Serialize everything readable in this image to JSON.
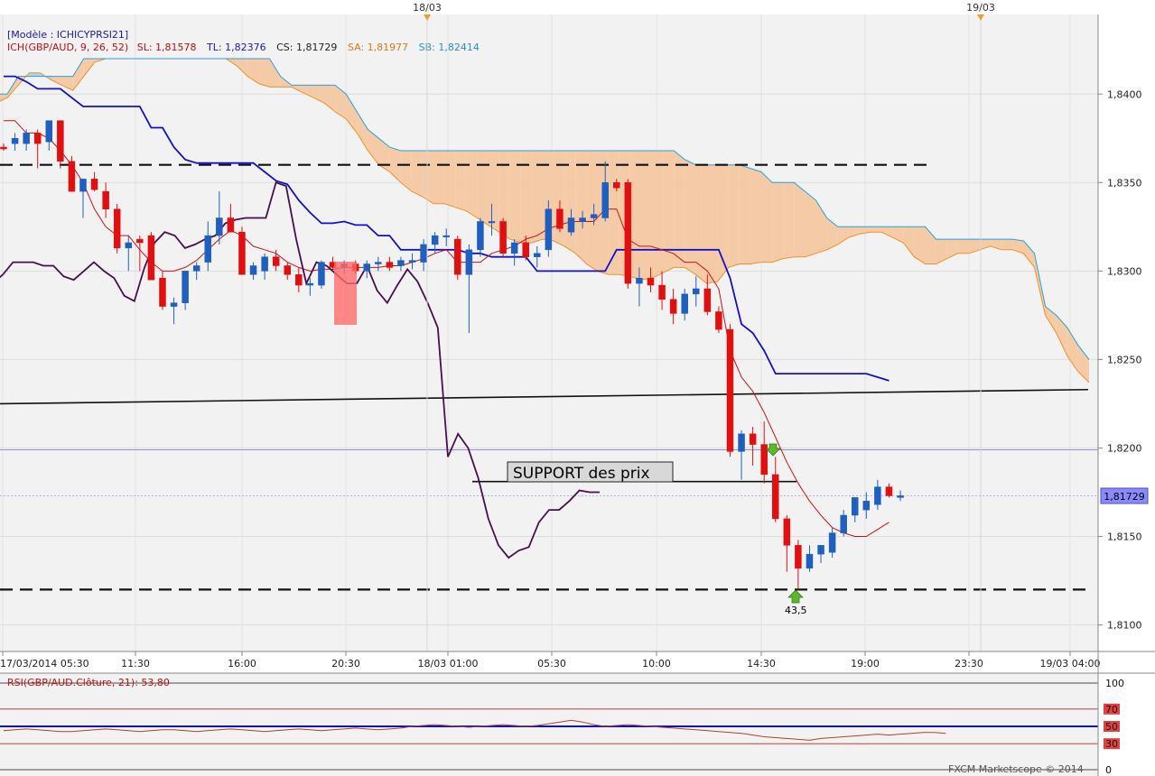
{
  "header": {
    "model_label": "[Modèle : ICHICYPRSI21]",
    "ich_label": "ICH(GBP/AUD, 9, 26, 52)",
    "sl": "SL: 1,81578",
    "tl": "TL: 1,82376",
    "cs": "CS: 1,81729",
    "sa": "SA: 1,81977",
    "sb": "SB: 1,82414"
  },
  "top_markers": [
    "18/03",
    "19/03"
  ],
  "annotations": {
    "support_label": "SUPPORT des prix",
    "rsi_value_label": "43,5"
  },
  "price_tag": "1,81729",
  "rsi_panel": {
    "title": "RSI(GBP/AUD.Clôture, 21): 53,80",
    "levels": [
      "100",
      "70",
      "50",
      "30",
      "0"
    ]
  },
  "footer": "FXCM Marketscope © 2014",
  "colors": {
    "bull": "#1f5fbf",
    "bear": "#e01010",
    "kijun": "#1212c8",
    "tenkan": "#d01010",
    "chikou": "#4a0e4e",
    "senkou_a": "#f0902a",
    "senkou_b": "#2aa0d8",
    "cloud_bear": "#f5cba7",
    "cloud_bull": "#a8d4ee"
  },
  "chart_data": {
    "type": "candlestick",
    "symbol": "GBP/AUD",
    "ylim": [
      1.8085,
      1.8445
    ],
    "y_ticks": [
      "1,8400",
      "1,8350",
      "1,8300",
      "1,8250",
      "1,8200",
      "1,8150",
      "1,8100"
    ],
    "x_ticks": [
      "17/03/2014 05:30",
      "11:30",
      "16:00",
      "20:30",
      "18/03 01:00",
      "05:30",
      "10:00",
      "14:30",
      "19:00",
      "23:30",
      "19/03 04:00"
    ],
    "candles": [
      [
        1.837,
        1.8372,
        1.8368,
        1.8369
      ],
      [
        1.8372,
        1.8378,
        1.8368,
        1.8375
      ],
      [
        1.8372,
        1.838,
        1.8368,
        1.8378
      ],
      [
        1.8378,
        1.838,
        1.8358,
        1.8372
      ],
      [
        1.8373,
        1.8385,
        1.8368,
        1.8385
      ],
      [
        1.8385,
        1.8385,
        1.8358,
        1.8362
      ],
      [
        1.8362,
        1.8365,
        1.8345,
        1.8345
      ],
      [
        1.8345,
        1.8352,
        1.833,
        1.8352
      ],
      [
        1.8352,
        1.8356,
        1.8345,
        1.8346
      ],
      [
        1.8345,
        1.835,
        1.833,
        1.8335
      ],
      [
        1.8335,
        1.8338,
        1.831,
        1.8313
      ],
      [
        1.8313,
        1.832,
        1.83,
        1.8316
      ],
      [
        1.8318,
        1.832,
        1.83,
        1.8316
      ],
      [
        1.832,
        1.8322,
        1.8295,
        1.8295
      ],
      [
        1.8296,
        1.83,
        1.8278,
        1.828
      ],
      [
        1.828,
        1.8285,
        1.827,
        1.8282
      ],
      [
        1.8282,
        1.83,
        1.8278,
        1.83
      ],
      [
        1.83,
        1.8305,
        1.8295,
        1.8303
      ],
      [
        1.8305,
        1.8328,
        1.83,
        1.832
      ],
      [
        1.832,
        1.8345,
        1.8315,
        1.833
      ],
      [
        1.833,
        1.8338,
        1.8322,
        1.8322
      ],
      [
        1.8322,
        1.8325,
        1.8298,
        1.8298
      ],
      [
        1.8298,
        1.8305,
        1.8295,
        1.8303
      ],
      [
        1.83,
        1.831,
        1.8295,
        1.8308
      ],
      [
        1.8308,
        1.8312,
        1.83,
        1.8303
      ],
      [
        1.8303,
        1.8305,
        1.8295,
        1.8298
      ],
      [
        1.8298,
        1.8302,
        1.8288,
        1.8292
      ],
      [
        1.8292,
        1.8296,
        1.8286,
        1.8293
      ],
      [
        1.8292,
        1.8306,
        1.829,
        1.8305
      ],
      [
        1.8305,
        1.8308,
        1.83,
        1.8302
      ],
      [
        1.8302,
        1.8306,
        1.8298,
        1.8304
      ],
      [
        1.8304,
        1.8306,
        1.8298,
        1.83
      ],
      [
        1.83,
        1.8306,
        1.8296,
        1.8304
      ],
      [
        1.8304,
        1.8308,
        1.83,
        1.8305
      ],
      [
        1.8305,
        1.8308,
        1.83,
        1.8302
      ],
      [
        1.8303,
        1.8308,
        1.83,
        1.8306
      ],
      [
        1.8305,
        1.831,
        1.8301,
        1.8306
      ],
      [
        1.8305,
        1.8318,
        1.83,
        1.8315
      ],
      [
        1.8315,
        1.8322,
        1.831,
        1.832
      ],
      [
        1.832,
        1.8324,
        1.8314,
        1.832
      ],
      [
        1.8318,
        1.832,
        1.8295,
        1.8298
      ],
      [
        1.8298,
        1.8315,
        1.8265,
        1.8312
      ],
      [
        1.8312,
        1.833,
        1.8308,
        1.8328
      ],
      [
        1.8328,
        1.8338,
        1.832,
        1.8328
      ],
      [
        1.8328,
        1.833,
        1.8308,
        1.831
      ],
      [
        1.831,
        1.8318,
        1.8303,
        1.8316
      ],
      [
        1.8316,
        1.832,
        1.8306,
        1.8308
      ],
      [
        1.8308,
        1.8314,
        1.8302,
        1.831
      ],
      [
        1.8312,
        1.834,
        1.8308,
        1.8335
      ],
      [
        1.8335,
        1.834,
        1.8322,
        1.8324
      ],
      [
        1.8322,
        1.8335,
        1.832,
        1.833
      ],
      [
        1.8328,
        1.8334,
        1.8324,
        1.833
      ],
      [
        1.833,
        1.8338,
        1.8326,
        1.8332
      ],
      [
        1.833,
        1.8362,
        1.8328,
        1.835
      ],
      [
        1.835,
        1.8352,
        1.8345,
        1.8347
      ],
      [
        1.835,
        1.8352,
        1.829,
        1.8293
      ],
      [
        1.8293,
        1.8302,
        1.828,
        1.8296
      ],
      [
        1.8296,
        1.8302,
        1.8288,
        1.8292
      ],
      [
        1.8292,
        1.83,
        1.8278,
        1.8284
      ],
      [
        1.8284,
        1.829,
        1.827,
        1.8276
      ],
      [
        1.8276,
        1.829,
        1.8272,
        1.8287
      ],
      [
        1.8287,
        1.8297,
        1.828,
        1.829
      ],
      [
        1.829,
        1.8298,
        1.8275,
        1.8277
      ],
      [
        1.8277,
        1.828,
        1.8265,
        1.8267
      ],
      [
        1.8267,
        1.827,
        1.8195,
        1.8198
      ],
      [
        1.8198,
        1.821,
        1.8182,
        1.8208
      ],
      [
        1.8208,
        1.8212,
        1.819,
        1.8202
      ],
      [
        1.8202,
        1.8215,
        1.818,
        1.8185
      ],
      [
        1.8185,
        1.8195,
        1.8158,
        1.816
      ],
      [
        1.816,
        1.8162,
        1.813,
        1.8145
      ],
      [
        1.8145,
        1.8148,
        1.812,
        1.8132
      ],
      [
        1.8132,
        1.8145,
        1.813,
        1.814
      ],
      [
        1.814,
        1.8145,
        1.8135,
        1.8145
      ],
      [
        1.8141,
        1.8155,
        1.8138,
        1.8152
      ],
      [
        1.8152,
        1.8165,
        1.815,
        1.8162
      ],
      [
        1.8162,
        1.8172,
        1.8158,
        1.8172
      ],
      [
        1.8165,
        1.8175,
        1.816,
        1.817
      ],
      [
        1.8168,
        1.8182,
        1.8165,
        1.8178
      ],
      [
        1.8178,
        1.818,
        1.8172,
        1.8173
      ],
      [
        1.8172,
        1.8176,
        1.817,
        1.8173
      ]
    ],
    "kijun": [
      1.841,
      1.841,
      1.8407,
      1.8403,
      1.8403,
      1.8403,
      1.8398,
      1.8393,
      1.8393,
      1.8393,
      1.8393,
      1.8393,
      1.8393,
      1.8381,
      1.8381,
      1.837,
      1.8363,
      1.8361,
      1.8361,
      1.8361,
      1.8361,
      1.8361,
      1.8361,
      1.8356,
      1.8351,
      1.8349,
      1.834,
      1.8333,
      1.8327,
      1.8327,
      1.8328,
      1.8326,
      1.8326,
      1.832,
      1.832,
      1.8312,
      1.8312,
      1.8312,
      1.8312,
      1.8312,
      1.8312,
      1.831,
      1.831,
      1.8308,
      1.8308,
      1.8308,
      1.8308,
      1.83,
      1.83,
      1.83,
      1.83,
      1.83,
      1.83,
      1.83,
      1.8312,
      1.8312,
      1.8312,
      1.8312,
      1.8312,
      1.8312,
      1.8312,
      1.8312,
      1.8312,
      1.8312,
      1.8296,
      1.827,
      1.8265,
      1.8255,
      1.8242,
      1.8242,
      1.8242,
      1.8242,
      1.8242,
      1.8242,
      1.8242,
      1.8242,
      1.8242,
      1.824,
      1.8238
    ],
    "tenkan": [
      1.8385,
      1.8385,
      1.8378,
      1.8378,
      1.8375,
      1.8368,
      1.836,
      1.835,
      1.8335,
      1.8325,
      1.832,
      1.832,
      1.8312,
      1.8305,
      1.83,
      1.83,
      1.8302,
      1.8306,
      1.8312,
      1.8318,
      1.8323,
      1.832,
      1.8314,
      1.8312,
      1.831,
      1.8305,
      1.8302,
      1.83,
      1.8301,
      1.8301,
      1.8302,
      1.8302,
      1.8302,
      1.8302,
      1.8303,
      1.8303,
      1.8305,
      1.8307,
      1.831,
      1.8312,
      1.8305,
      1.8305,
      1.8305,
      1.831,
      1.8312,
      1.8314,
      1.8318,
      1.832,
      1.8324,
      1.8326,
      1.8328,
      1.8328,
      1.8328,
      1.8335,
      1.8335,
      1.8318,
      1.8314,
      1.8314,
      1.8312,
      1.831,
      1.8305,
      1.8305,
      1.83,
      1.829,
      1.8255,
      1.824,
      1.8232,
      1.822,
      1.8206,
      1.8192,
      1.818,
      1.817,
      1.8162,
      1.8155,
      1.8152,
      1.815,
      1.815,
      1.8154,
      1.8158
    ],
    "chikou": [
      1.8293,
      1.8298,
      1.8305,
      1.8305,
      1.8305,
      1.8303,
      1.8303,
      1.8297,
      1.8295,
      1.83,
      1.8305,
      1.83,
      1.8296,
      1.8286,
      1.8283,
      1.8302,
      1.8316,
      1.8322,
      1.832,
      1.8313,
      1.8315,
      1.8318,
      1.832,
      1.8327,
      1.8329,
      1.833,
      1.833,
      1.833,
      1.835,
      1.8348,
      1.8318,
      1.8293,
      1.8305,
      1.8303,
      1.8298,
      1.8293,
      1.8293,
      1.8303,
      1.8289,
      1.8282,
      1.8292,
      1.8301,
      1.8294,
      1.8282,
      1.8268,
      1.8195,
      1.8208,
      1.82,
      1.8183,
      1.816,
      1.8145,
      1.8138,
      1.8142,
      1.8144,
      1.8158,
      1.8165,
      1.8165,
      1.817,
      1.8176,
      1.8175,
      1.8175
    ],
    "senkou_a": [
      1.8395,
      1.8398,
      1.8405,
      1.8412,
      1.8412,
      1.8408,
      1.8405,
      1.8402,
      1.841,
      1.8418,
      1.842,
      1.842,
      1.842,
      1.842,
      1.842,
      1.842,
      1.842,
      1.842,
      1.842,
      1.842,
      1.842,
      1.842,
      1.8416,
      1.841,
      1.8406,
      1.8404,
      1.8404,
      1.8404,
      1.8401,
      1.8398,
      1.8395,
      1.839,
      1.8386,
      1.8378,
      1.8368,
      1.836,
      1.8356,
      1.835,
      1.8345,
      1.8342,
      1.8338,
      1.8338,
      1.8336,
      1.8334,
      1.833,
      1.8326,
      1.8322,
      1.8318,
      1.8316,
      1.8316,
      1.8318,
      1.8317,
      1.8314,
      1.831,
      1.8304,
      1.83,
      1.8298,
      1.8298,
      1.8297,
      1.8295,
      1.8296,
      1.8299,
      1.8302,
      1.8302,
      1.8298,
      1.8293,
      1.8294,
      1.8302,
      1.8304,
      1.8304,
      1.8305,
      1.8305,
      1.8307,
      1.8308,
      1.8308,
      1.831,
      1.8312,
      1.8315,
      1.8319,
      1.8321,
      1.8322,
      1.8322,
      1.8319,
      1.8316,
      1.8308,
      1.8304,
      1.8304,
      1.8307,
      1.831,
      1.831,
      1.8312,
      1.8314,
      1.8312,
      1.8312,
      1.831,
      1.8302,
      1.8275,
      1.8265,
      1.8252,
      1.8243,
      1.8237
    ],
    "senkou_b": [
      1.84,
      1.84,
      1.841,
      1.841,
      1.841,
      1.841,
      1.841,
      1.841,
      1.842,
      1.842,
      1.842,
      1.842,
      1.842,
      1.842,
      1.842,
      1.842,
      1.842,
      1.842,
      1.842,
      1.842,
      1.842,
      1.842,
      1.842,
      1.842,
      1.842,
      1.842,
      1.841,
      1.8405,
      1.8405,
      1.8405,
      1.8405,
      1.8405,
      1.84,
      1.839,
      1.838,
      1.8375,
      1.837,
      1.8368,
      1.8368,
      1.8368,
      1.8368,
      1.8368,
      1.8368,
      1.8368,
      1.8368,
      1.8368,
      1.8368,
      1.8368,
      1.8368,
      1.8368,
      1.8368,
      1.8368,
      1.8368,
      1.8368,
      1.8368,
      1.8368,
      1.8368,
      1.8368,
      1.8368,
      1.8368,
      1.8368,
      1.8368,
      1.8368,
      1.8363,
      1.836,
      1.836,
      1.836,
      1.836,
      1.836,
      1.8358,
      1.8356,
      1.835,
      1.835,
      1.835,
      1.8345,
      1.834,
      1.833,
      1.8325,
      1.8325,
      1.8325,
      1.8325,
      1.8325,
      1.8325,
      1.8325,
      1.8325,
      1.8325,
      1.8318,
      1.8318,
      1.8318,
      1.8318,
      1.8318,
      1.8318,
      1.8318,
      1.8318,
      1.8317,
      1.831,
      1.828,
      1.8275,
      1.8268,
      1.8258,
      1.825
    ],
    "horizontal_lines": [
      {
        "style": "dashed",
        "value": 1.836
      },
      {
        "style": "dashed",
        "value": 1.812
      },
      {
        "style": "solid",
        "value": 1.8181
      },
      {
        "style": "thin",
        "value": 1.8199
      }
    ],
    "trendline": [
      1.8225,
      1.8233
    ],
    "rsi": {
      "levels": [
        100,
        70,
        50,
        30,
        0
      ],
      "values": [
        45,
        46,
        47,
        46,
        45,
        44,
        44,
        45,
        46,
        47,
        46,
        45,
        44,
        45,
        46,
        46,
        45,
        44,
        45,
        46,
        47,
        46,
        45,
        44,
        45,
        46,
        47,
        46,
        45,
        46,
        47,
        48,
        47,
        46,
        47,
        48,
        50,
        51,
        52,
        51,
        50,
        49,
        50,
        51,
        52,
        51,
        50,
        51,
        53,
        55,
        57,
        55,
        52,
        50,
        51,
        52,
        51,
        50,
        49,
        48,
        47,
        46,
        45,
        44,
        43,
        42,
        40,
        38,
        37,
        36,
        35,
        34,
        36,
        37,
        38,
        39,
        40,
        41,
        40,
        41,
        42,
        43,
        43,
        42
      ]
    }
  }
}
